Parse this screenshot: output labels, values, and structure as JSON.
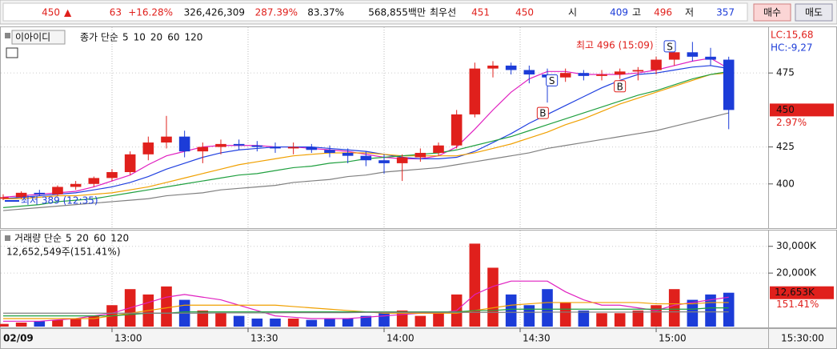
{
  "header": {
    "price": "450",
    "arrow": "▲",
    "change": "63",
    "change_rate": "+16.28%",
    "volume": "326,426,309",
    "volume_ratio": "287.39%",
    "turnover": "83.37%",
    "amount": "568,855백만",
    "best_label": "최우선",
    "best_ask": "451",
    "best_bid": "450",
    "open_label": "시",
    "open": "409",
    "high_label": "고",
    "high": "496",
    "low_label": "저",
    "low": "357",
    "buy": "매수",
    "sell": "매도"
  },
  "chart_data": [
    {
      "type": "candlestick",
      "stock_name": "이아이디",
      "legend_title": "종가 단순",
      "x": [
        756,
        760,
        764,
        768,
        772,
        776,
        780,
        784,
        788,
        792,
        796,
        800,
        804,
        808,
        812,
        816,
        820,
        824,
        828,
        832,
        836,
        840,
        844,
        848,
        852,
        856,
        860,
        864,
        868,
        872,
        876,
        880,
        884,
        888,
        892,
        896,
        900,
        904,
        908,
        912,
        916
      ],
      "open": [
        390,
        391,
        394,
        393,
        398,
        400,
        404,
        408,
        420,
        428,
        432,
        422,
        425,
        427,
        426,
        425,
        424,
        425,
        423,
        421,
        419,
        416,
        414,
        418,
        421,
        426,
        447,
        478,
        480,
        477,
        474,
        472,
        475,
        473,
        474,
        476,
        477,
        484,
        489,
        486,
        484
      ],
      "high": [
        393,
        395,
        396,
        399,
        402,
        405,
        410,
        422,
        432,
        446,
        436,
        428,
        430,
        430,
        429,
        428,
        428,
        427,
        426,
        424,
        422,
        420,
        420,
        424,
        428,
        450,
        482,
        483,
        482,
        480,
        478,
        478,
        477,
        477,
        478,
        479,
        486,
        494,
        496,
        492,
        486
      ],
      "low": [
        389,
        390,
        392,
        392,
        396,
        398,
        402,
        406,
        416,
        424,
        418,
        414,
        420,
        423,
        422,
        421,
        420,
        421,
        418,
        414,
        412,
        407,
        402,
        415,
        419,
        424,
        445,
        472,
        474,
        468,
        455,
        469,
        470,
        470,
        471,
        470,
        474,
        480,
        483,
        480,
        437
      ],
      "close": [
        391,
        394,
        393,
        398,
        400,
        404,
        408,
        420,
        428,
        432,
        422,
        425,
        427,
        426,
        425,
        424,
        425,
        423,
        421,
        419,
        416,
        414,
        418,
        421,
        426,
        447,
        478,
        480,
        477,
        474,
        472,
        475,
        473,
        474,
        476,
        477,
        484,
        489,
        486,
        484,
        450
      ],
      "up_color": "#e0201c",
      "down_color": "#1c3cd8",
      "series": [
        {
          "name": "5",
          "color": "#e020c0",
          "values": [
            391,
            392,
            393,
            394,
            395,
            398,
            402,
            406,
            413,
            419,
            422,
            425,
            426,
            426,
            426,
            425,
            425,
            424,
            423,
            422,
            420,
            418,
            417,
            417,
            419,
            425,
            437,
            450,
            462,
            471,
            476,
            476,
            474,
            474,
            474,
            475,
            477,
            480,
            483,
            485,
            478
          ]
        },
        {
          "name": "10",
          "color": "#2040e0",
          "values": [
            390,
            391,
            392,
            393,
            394,
            396,
            398,
            401,
            405,
            410,
            414,
            418,
            421,
            423,
            424,
            425,
            425,
            425,
            424,
            423,
            422,
            420,
            418,
            417,
            417,
            418,
            422,
            428,
            434,
            441,
            447,
            453,
            459,
            465,
            470,
            474,
            475,
            477,
            479,
            480,
            478
          ]
        },
        {
          "name": "20",
          "color": "#f0a000",
          "values": [
            390,
            390,
            391,
            392,
            392,
            393,
            394,
            396,
            398,
            401,
            404,
            407,
            410,
            413,
            415,
            417,
            419,
            420,
            421,
            421,
            421,
            420,
            419,
            419,
            419,
            419,
            421,
            424,
            427,
            431,
            435,
            440,
            444,
            449,
            454,
            458,
            462,
            466,
            470,
            474,
            475
          ]
        },
        {
          "name": "60",
          "color": "#20a040",
          "values": [
            384,
            385,
            386,
            388,
            389,
            390,
            392,
            394,
            396,
            398,
            400,
            402,
            404,
            406,
            407,
            409,
            411,
            412,
            414,
            415,
            417,
            418,
            419,
            420,
            421,
            423,
            426,
            429,
            432,
            436,
            440,
            444,
            448,
            452,
            456,
            460,
            463,
            467,
            471,
            474,
            476
          ]
        },
        {
          "name": "120",
          "color": "#808080",
          "values": [
            382,
            383,
            384,
            385,
            386,
            387,
            388,
            389,
            390,
            392,
            393,
            394,
            396,
            397,
            398,
            399,
            401,
            402,
            403,
            405,
            406,
            408,
            409,
            410,
            411,
            413,
            415,
            417,
            419,
            421,
            424,
            426,
            428,
            430,
            432,
            434,
            436,
            439,
            442,
            445,
            448
          ]
        }
      ],
      "xlim": [
        755.3,
        924.7
      ],
      "xticks": [
        {
          "value": 780,
          "label": "13:00"
        },
        {
          "value": 810,
          "label": "13:30"
        },
        {
          "value": 840,
          "label": "14:00"
        },
        {
          "value": 870,
          "label": "14:30"
        },
        {
          "value": 900,
          "label": "15:00"
        }
      ],
      "date_label": "02/09",
      "time_label": "15:30:00",
      "ylim": [
        371.2,
        505.4
      ],
      "yticks": [
        400,
        425,
        475
      ],
      "grid": true,
      "high_annotation": "최고 496 (15:09)",
      "low_annotation": "최저 389 (12:35)",
      "lc": "LC:15,68",
      "hc": "HC:-9,27",
      "last_price": 450,
      "last_change": "2.97%",
      "signals": [
        {
          "label": "S",
          "x": 877,
          "value": 470
        },
        {
          "label": "B",
          "x": 875,
          "value": 448
        },
        {
          "label": "B",
          "x": 892,
          "value": 466
        },
        {
          "label": "S",
          "x": 903,
          "value": 493
        }
      ]
    },
    {
      "type": "volume",
      "legend_title": "거래량 단순",
      "info": "12,652,549주(151.41%)",
      "values": [
        1000,
        1500,
        2000,
        2500,
        3000,
        4000,
        8000,
        14000,
        12000,
        15000,
        10000,
        6000,
        5000,
        4000,
        3000,
        3000,
        3000,
        2500,
        3000,
        3000,
        4000,
        5000,
        6000,
        4000,
        5000,
        12000,
        31000,
        22000,
        12000,
        8000,
        14000,
        9000,
        6000,
        5000,
        5000,
        6000,
        8000,
        14000,
        10000,
        12000,
        12652.549
      ],
      "series": [
        {
          "name": "5",
          "color": "#e020c0",
          "values": [
            2000,
            2000,
            2000,
            2500,
            3000,
            4000,
            5000,
            7000,
            9000,
            11000,
            12000,
            11000,
            10000,
            8000,
            6000,
            4000,
            3500,
            3000,
            3000,
            3000,
            3500,
            4000,
            4500,
            5000,
            5000,
            6000,
            12000,
            15000,
            17000,
            17000,
            17000,
            13000,
            10000,
            8000,
            8000,
            7000,
            6000,
            8000,
            9000,
            10000,
            11000
          ]
        },
        {
          "name": "20",
          "color": "#f0a000",
          "values": [
            3000,
            3000,
            3000,
            3000,
            3000,
            3000,
            4000,
            5000,
            6000,
            7000,
            8000,
            8000,
            8000,
            8000,
            8000,
            8000,
            7500,
            7000,
            6500,
            6000,
            5500,
            5000,
            5000,
            5000,
            5000,
            5000,
            6000,
            7000,
            8000,
            8500,
            9000,
            9000,
            9000,
            9000,
            9000,
            9000,
            8500,
            8500,
            8500,
            9000,
            9000
          ]
        },
        {
          "name": "60",
          "color": "#20a040",
          "values": [
            4000,
            4000,
            4000,
            4000,
            4000,
            4000,
            4000,
            4500,
            5000,
            5000,
            5500,
            5500,
            5500,
            5500,
            5500,
            5500,
            5500,
            5500,
            5500,
            5500,
            5500,
            5500,
            5500,
            5500,
            5500,
            5500,
            6000,
            6000,
            6500,
            6500,
            6500,
            6500,
            6500,
            6500,
            6500,
            6500,
            6500,
            6500,
            6500,
            7000,
            7000
          ]
        },
        {
          "name": "120",
          "color": "#808080",
          "values": [
            5000,
            5000,
            5000,
            5000,
            5000,
            5000,
            5000,
            5000,
            5000,
            5000,
            5000,
            5000,
            5100,
            5100,
            5100,
            5100,
            5200,
            5200,
            5200,
            5200,
            5300,
            5300,
            5300,
            5300,
            5300,
            5300,
            5300,
            5300,
            5300,
            5300,
            5400,
            5400,
            5400,
            5400,
            5400,
            5400,
            5500,
            5500,
            5500,
            5500,
            5500
          ]
        }
      ],
      "ylim": [
        0,
        35300
      ],
      "yticks": [
        {
          "value": 20000,
          "label": "20,000K"
        },
        {
          "value": 30000,
          "label": "30,000K"
        }
      ],
      "grid": true,
      "last_label": "12,653K",
      "last_ratio": "151.41%"
    }
  ]
}
